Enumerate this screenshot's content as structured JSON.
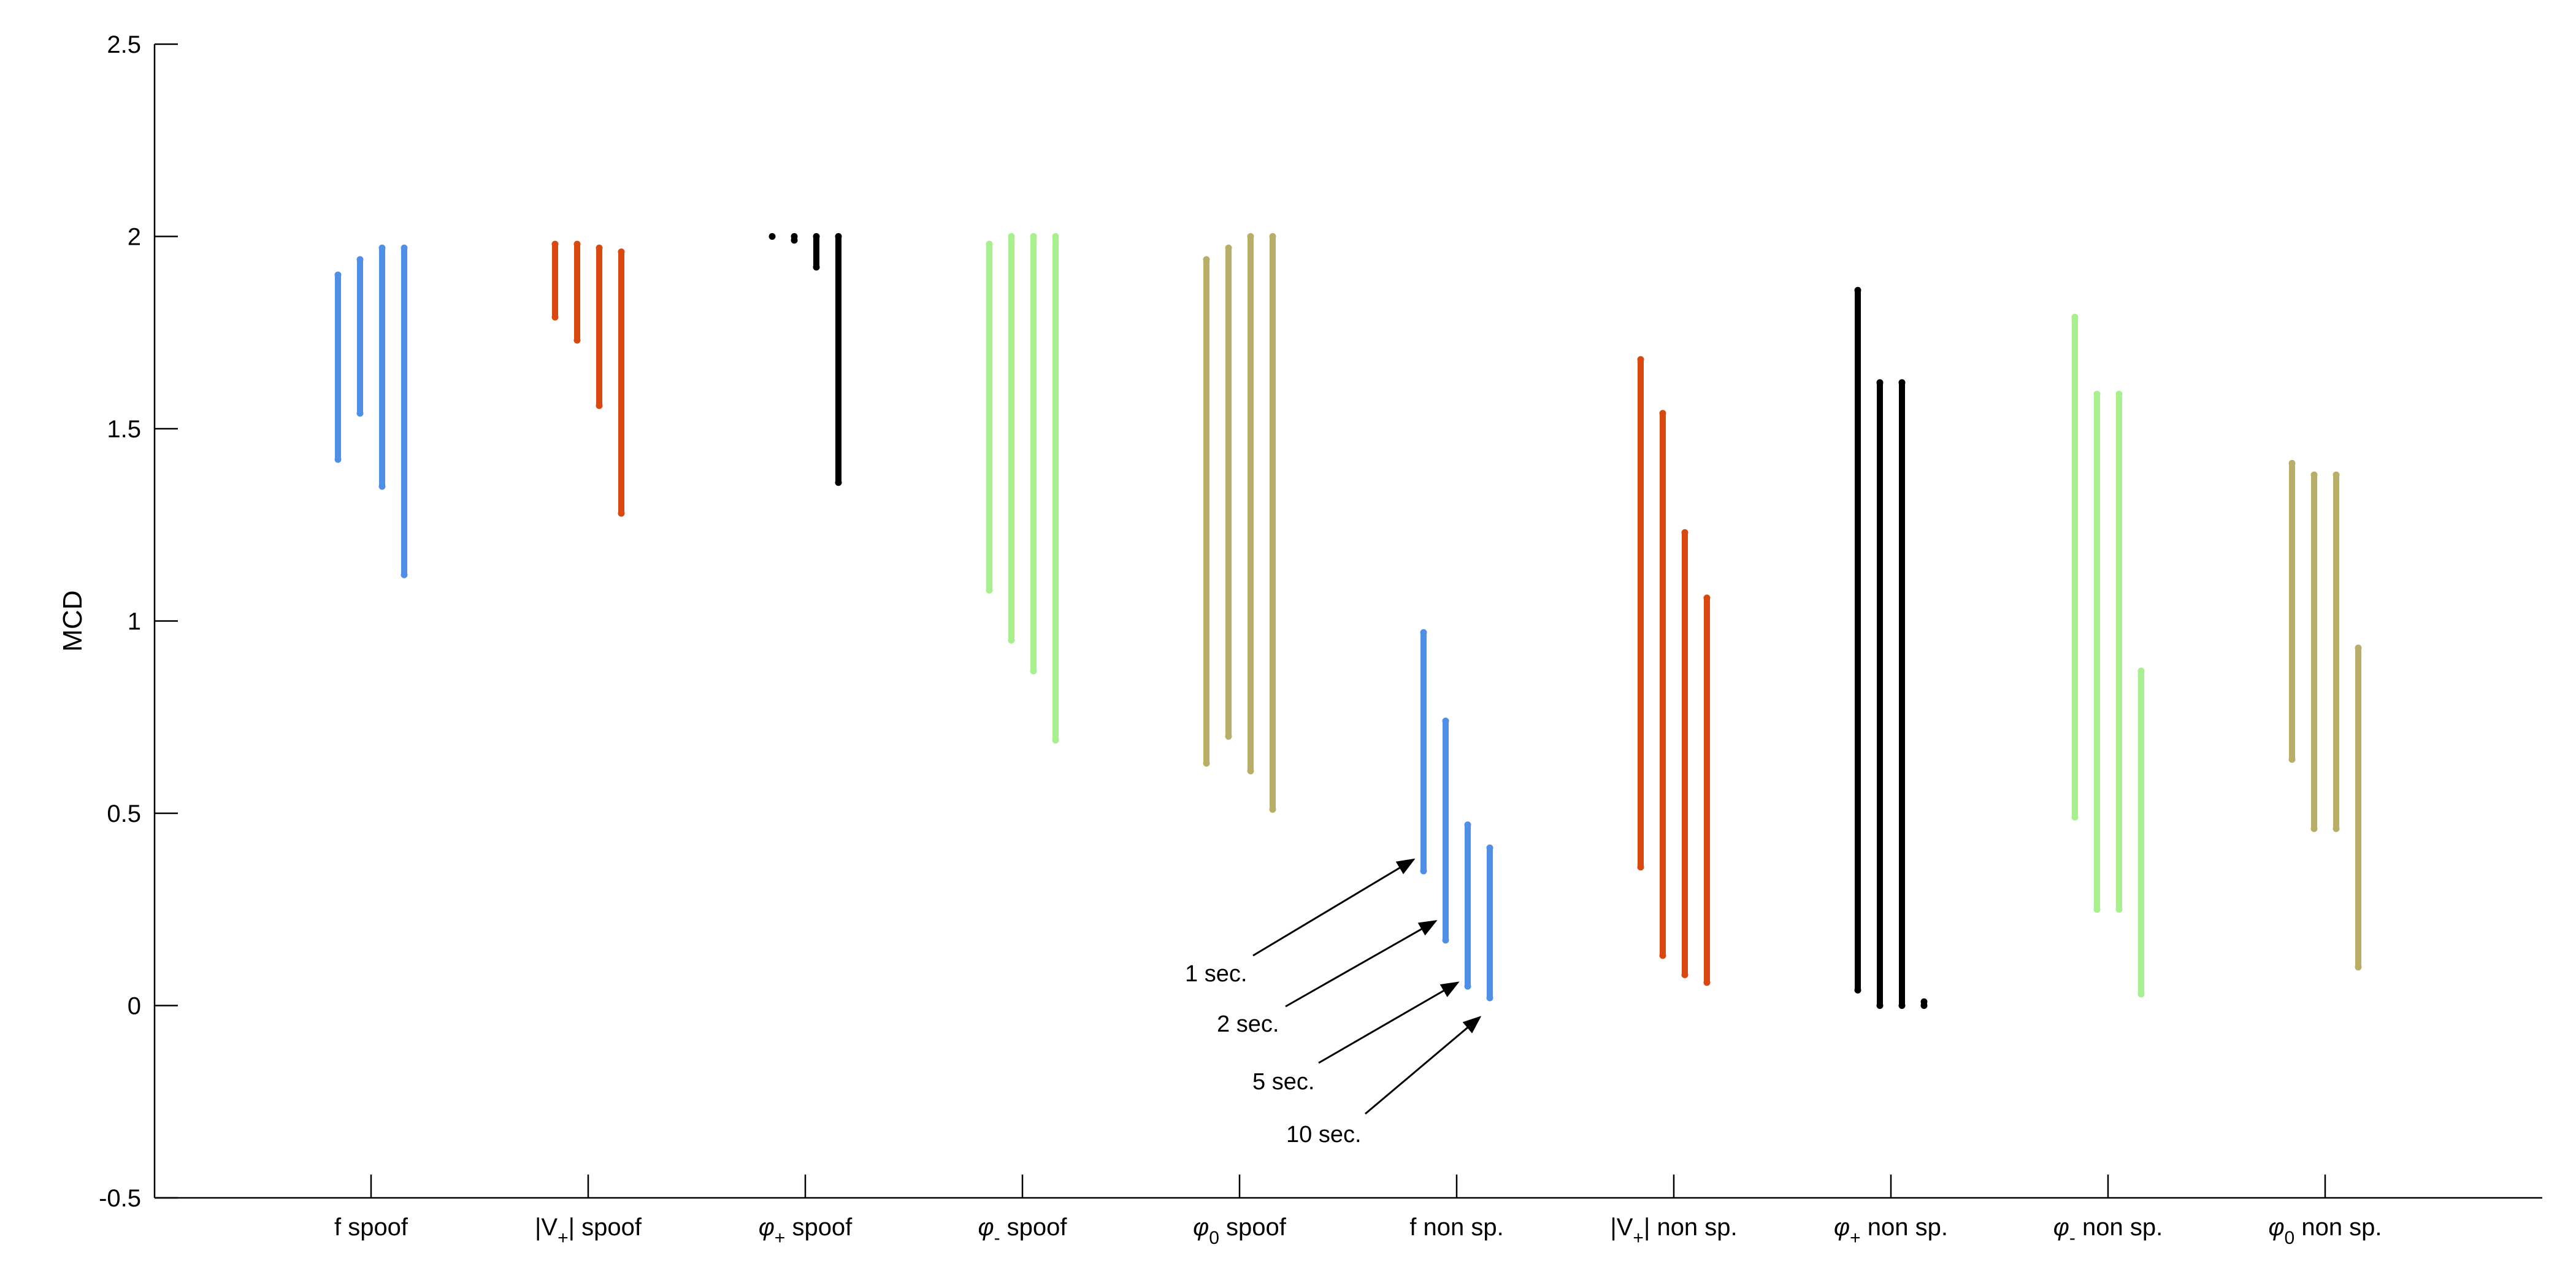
{
  "chart_data": {
    "type": "scatter",
    "title": "",
    "xlabel": "",
    "ylabel": "MCD",
    "ylim": [
      -0.5,
      2.5
    ],
    "yticks": [
      -0.5,
      0,
      0.5,
      1,
      1.5,
      2,
      2.5
    ],
    "ytick_labels": [
      "-0.5",
      "0",
      "0.5",
      "1",
      "1.5",
      "2",
      "2.5"
    ],
    "grid": false,
    "durations": [
      "1 sec.",
      "2 sec.",
      "5 sec.",
      "10 sec."
    ],
    "groups": [
      {
        "label": "f spoof",
        "base": "f",
        "sub": "",
        "rest": " spoof",
        "color": "#4F8FE6",
        "series": [
          {
            "min": 1.42,
            "max": 1.9
          },
          {
            "min": 1.54,
            "max": 1.94
          },
          {
            "min": 1.35,
            "max": 1.97
          },
          {
            "min": 1.12,
            "max": 1.97
          }
        ]
      },
      {
        "label": "|V+| spoof",
        "base": "|V",
        "sub": "+",
        "rest": "| spoof",
        "color": "#D9480F",
        "series": [
          {
            "min": 1.79,
            "max": 1.98
          },
          {
            "min": 1.73,
            "max": 1.98
          },
          {
            "min": 1.56,
            "max": 1.97
          },
          {
            "min": 1.28,
            "max": 1.96
          }
        ]
      },
      {
        "label": "φ+ spoof",
        "base": "φ",
        "sub": "+",
        "rest": " spoof",
        "color": "#000000",
        "series": [
          {
            "min": 2.0,
            "max": 2.0
          },
          {
            "min": 1.99,
            "max": 2.0
          },
          {
            "min": 1.92,
            "max": 2.0
          },
          {
            "min": 1.36,
            "max": 2.0
          }
        ]
      },
      {
        "label": "φ- spoof",
        "base": "φ",
        "sub": "-",
        "rest": " spoof",
        "color": "#A8F08E",
        "series": [
          {
            "min": 1.08,
            "max": 1.98
          },
          {
            "min": 0.95,
            "max": 2.0
          },
          {
            "min": 0.87,
            "max": 2.0
          },
          {
            "min": 0.69,
            "max": 2.0
          }
        ]
      },
      {
        "label": "φ0 spoof",
        "base": "φ",
        "sub": "0",
        "rest": " spoof",
        "color": "#B8AE68",
        "series": [
          {
            "min": 0.63,
            "max": 1.94
          },
          {
            "min": 0.7,
            "max": 1.97
          },
          {
            "min": 0.61,
            "max": 2.0
          },
          {
            "min": 0.51,
            "max": 2.0
          }
        ]
      },
      {
        "label": "f non sp.",
        "base": "f",
        "sub": "",
        "rest": " non sp.",
        "color": "#4F8FE6",
        "series": [
          {
            "min": 0.35,
            "max": 0.97
          },
          {
            "min": 0.17,
            "max": 0.74
          },
          {
            "min": 0.05,
            "max": 0.47
          },
          {
            "min": 0.02,
            "max": 0.41
          }
        ]
      },
      {
        "label": "|V+| non sp.",
        "base": "|V",
        "sub": "+",
        "rest": "| non sp.",
        "color": "#D9480F",
        "series": [
          {
            "min": 0.36,
            "max": 1.68
          },
          {
            "min": 0.13,
            "max": 1.54
          },
          {
            "min": 0.08,
            "max": 1.23
          },
          {
            "min": 0.06,
            "max": 1.06
          }
        ]
      },
      {
        "label": "φ+ non sp.",
        "base": "φ",
        "sub": "+",
        "rest": " non sp.",
        "color": "#000000",
        "series": [
          {
            "min": 0.04,
            "max": 1.86
          },
          {
            "min": 0.0,
            "max": 1.62
          },
          {
            "min": 0.0,
            "max": 1.62
          },
          {
            "min": 0.0,
            "max": 0.01
          }
        ]
      },
      {
        "label": "φ- non sp.",
        "base": "φ",
        "sub": "-",
        "rest": " non sp.",
        "color": "#A8F08E",
        "series": [
          {
            "min": 0.49,
            "max": 1.79
          },
          {
            "min": 0.25,
            "max": 1.59
          },
          {
            "min": 0.25,
            "max": 1.59
          },
          {
            "min": 0.03,
            "max": 0.87
          }
        ]
      },
      {
        "label": "φ0 non sp.",
        "base": "φ",
        "sub": "0",
        "rest": " non sp.",
        "color": "#B8AE68",
        "series": [
          {
            "min": 0.64,
            "max": 1.41
          },
          {
            "min": 0.46,
            "max": 1.38
          },
          {
            "min": 0.46,
            "max": 1.38
          },
          {
            "min": 0.1,
            "max": 0.93
          }
        ]
      }
    ],
    "annotations": [
      {
        "text": "1 sec.",
        "target_group": 5,
        "target_series": 0,
        "target_y": 0.38
      },
      {
        "text": "2 sec.",
        "target_group": 5,
        "target_series": 1,
        "target_y": 0.22
      },
      {
        "text": "5 sec.",
        "target_group": 5,
        "target_series": 2,
        "target_y": 0.06
      },
      {
        "text": "10 sec.",
        "target_group": 5,
        "target_series": 3,
        "target_y": -0.03
      }
    ]
  }
}
